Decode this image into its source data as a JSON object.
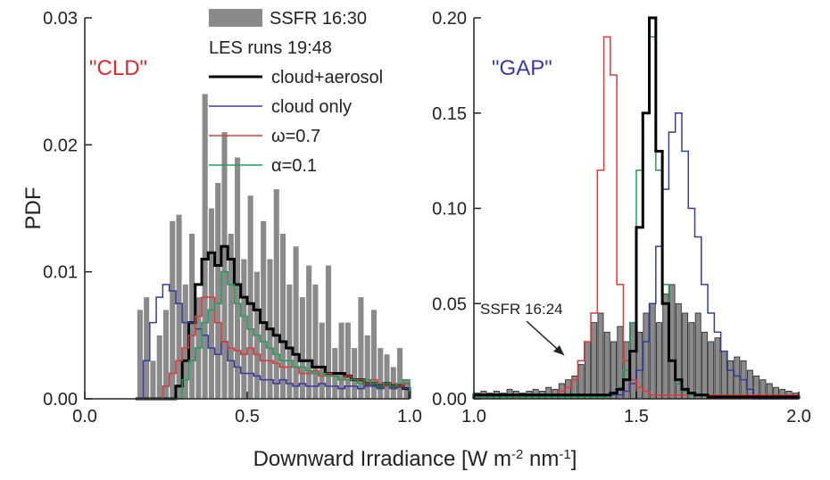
{
  "xlabel_parts": [
    {
      "text": "Downward Irradiance [W m"
    },
    {
      "text": "-2",
      "sup": true
    },
    {
      "text": " nm"
    },
    {
      "text": "-1",
      "sup": true
    },
    {
      "text": "]"
    }
  ],
  "chart_data": [
    {
      "type": "histogram",
      "ylabel": "PDF",
      "annotation": {
        "text": "\"CLD\"",
        "color": "#e02828"
      },
      "legend": "upper right",
      "legend_heading": "LES runs 19:48",
      "xlim": [
        0,
        1
      ],
      "ylim": [
        0,
        0.03
      ],
      "xticks": [
        {
          "value": 0,
          "label": "0.0"
        },
        {
          "value": 0.5,
          "label": "0.5"
        },
        {
          "value": 1,
          "label": "1.0"
        }
      ],
      "yticks": [
        {
          "value": 0,
          "label": "0.00"
        },
        {
          "value": 0.01,
          "label": "0.01"
        },
        {
          "value": 0.02,
          "label": "0.02"
        },
        {
          "value": 0.03,
          "label": "0.03"
        }
      ],
      "bins": [
        0.16,
        0.18,
        0.2,
        0.22,
        0.24,
        0.26,
        0.28,
        0.3,
        0.32,
        0.34,
        0.36,
        0.38,
        0.4,
        0.42,
        0.44,
        0.46,
        0.48,
        0.5,
        0.52,
        0.54,
        0.56,
        0.58,
        0.6,
        0.62,
        0.64,
        0.66,
        0.68,
        0.7,
        0.72,
        0.74,
        0.76,
        0.78,
        0.8,
        0.82,
        0.84,
        0.86,
        0.88,
        0.9,
        0.92,
        0.94,
        0.96,
        0.98,
        1.0
      ],
      "series": [
        {
          "name": "SSFR 16:30",
          "style": "bar",
          "color": "#8a8a8a",
          "values": [
            0.007,
            0.008,
            0.003,
            0.005,
            0.007,
            0.014,
            0.0145,
            0.009,
            0.013,
            0.008,
            0.024,
            0.015,
            0.017,
            0.021,
            0.013,
            0.019,
            0.011,
            0.016,
            0.01,
            0.014,
            0.011,
            0.0165,
            0.013,
            0.009,
            0.012,
            0.008,
            0.0105,
            0.009,
            0.006,
            0.0105,
            0.004,
            0.006,
            0.006,
            0.004,
            0.008,
            0.005,
            0.007,
            0.004,
            0.0035,
            0.0025,
            0.004,
            0.0015
          ]
        },
        {
          "name": "cloud+aerosol",
          "style": "step",
          "linewidth": 3,
          "color": "#000000",
          "values": [
            0,
            0,
            0,
            0,
            0,
            0,
            0.001,
            0.003,
            0.006,
            0.009,
            0.011,
            0.0115,
            0.0105,
            0.012,
            0.011,
            0.009,
            0.008,
            0.0075,
            0.007,
            0.006,
            0.0055,
            0.005,
            0.0045,
            0.004,
            0.0035,
            0.003,
            0.003,
            0.0025,
            0.0025,
            0.002,
            0.002,
            0.002,
            0.0018,
            0.0015,
            0.0015,
            0.0012,
            0.0012,
            0.001,
            0.0012,
            0.001,
            0.001,
            0.0008
          ]
        },
        {
          "name": "cloud only",
          "style": "step",
          "linewidth": 1.5,
          "color": "#3a3aa0",
          "values": [
            0,
            0.003,
            0.006,
            0.008,
            0.009,
            0.0085,
            0.0075,
            0.006,
            0.006,
            0.0055,
            0.005,
            0.004,
            0.0035,
            0.0045,
            0.003,
            0.0025,
            0.002,
            0.002,
            0.0018,
            0.0015,
            0.0015,
            0.0012,
            0.0015,
            0.0012,
            0.001,
            0.0012,
            0.001,
            0.001,
            0.0012,
            0.001,
            0.001,
            0.0008,
            0.001,
            0.001,
            0.0008,
            0.001,
            0.001,
            0.0008,
            0.001,
            0.0008,
            0.001,
            0.0008
          ]
        },
        {
          "name": "ω=0.7",
          "style": "step",
          "linewidth": 1.5,
          "color": "#e03a3a",
          "values": [
            0,
            0,
            0,
            0,
            0.001,
            0.002,
            0.003,
            0.004,
            0.005,
            0.0065,
            0.008,
            0.008,
            0.006,
            0.0045,
            0.004,
            0.0038,
            0.0035,
            0.004,
            0.0035,
            0.003,
            0.003,
            0.0028,
            0.0025,
            0.0025,
            0.0025,
            0.002,
            0.002,
            0.0022,
            0.0018,
            0.002,
            0.0018,
            0.0015,
            0.0018,
            0.0015,
            0.0015,
            0.0012,
            0.0015,
            0.0012,
            0.001,
            0.0012,
            0.001,
            0.0012
          ]
        },
        {
          "name": "α=0.1",
          "style": "step",
          "linewidth": 1.5,
          "color": "#1fa05a",
          "values": [
            0,
            0,
            0,
            0,
            0,
            0,
            0,
            0.0015,
            0.003,
            0.004,
            0.006,
            0.007,
            0.0075,
            0.01,
            0.009,
            0.0075,
            0.0065,
            0.0055,
            0.005,
            0.0045,
            0.004,
            0.0035,
            0.003,
            0.003,
            0.0025,
            0.0025,
            0.0022,
            0.002,
            0.002,
            0.0018,
            0.0018,
            0.0015,
            0.0015,
            0.0015,
            0.0012,
            0.0015,
            0.0012,
            0.001,
            0.0012,
            0.001,
            0.0012,
            0.0015
          ]
        }
      ]
    },
    {
      "type": "histogram",
      "annotation": {
        "text": "\"GAP\"",
        "color": "#3a3aa0"
      },
      "arrow_label": "SSFR 16:24",
      "xlim": [
        1,
        2
      ],
      "ylim": [
        0,
        0.2
      ],
      "xticks": [
        {
          "value": 1,
          "label": "1.0"
        },
        {
          "value": 1.5,
          "label": "1.5"
        },
        {
          "value": 2,
          "label": "2.0"
        }
      ],
      "yticks": [
        {
          "value": 0,
          "label": "0.00"
        },
        {
          "value": 0.05,
          "label": "0.05"
        },
        {
          "value": 0.1,
          "label": "0.10"
        },
        {
          "value": 0.15,
          "label": "0.15"
        },
        {
          "value": 0.2,
          "label": "0.20"
        }
      ],
      "bins": [
        1.0,
        1.02,
        1.04,
        1.06,
        1.08,
        1.1,
        1.12,
        1.14,
        1.16,
        1.18,
        1.2,
        1.22,
        1.24,
        1.26,
        1.28,
        1.3,
        1.32,
        1.34,
        1.36,
        1.38,
        1.4,
        1.42,
        1.44,
        1.46,
        1.48,
        1.5,
        1.52,
        1.54,
        1.56,
        1.58,
        1.6,
        1.62,
        1.64,
        1.66,
        1.68,
        1.7,
        1.72,
        1.74,
        1.76,
        1.78,
        1.8,
        1.82,
        1.84,
        1.86,
        1.88,
        1.9,
        1.92,
        1.94,
        1.96,
        1.98,
        2.0
      ],
      "series": [
        {
          "style": "bar",
          "color": "#8a8a8a",
          "values": [
            0.003,
            0.004,
            0.003,
            0.004,
            0.003,
            0.005,
            0.004,
            0.003,
            0.004,
            0.005,
            0.004,
            0.006,
            0.005,
            0.008,
            0.01,
            0.012,
            0.018,
            0.03,
            0.04,
            0.045,
            0.035,
            0.03,
            0.038,
            0.03,
            0.04,
            0.035,
            0.045,
            0.05,
            0.04,
            0.055,
            0.06,
            0.05,
            0.045,
            0.04,
            0.045,
            0.035,
            0.03,
            0.032,
            0.025,
            0.02,
            0.022,
            0.02,
            0.015,
            0.012,
            0.01,
            0.008,
            0.006,
            0.005,
            0.004,
            0.003
          ]
        },
        {
          "style": "step",
          "linewidth": 1.5,
          "color": "#3a3aa0",
          "values": [
            0.002,
            0.002,
            0.002,
            0.002,
            0.002,
            0.002,
            0.002,
            0.002,
            0.002,
            0.002,
            0.002,
            0.002,
            0.002,
            0.002,
            0.002,
            0.002,
            0.002,
            0.002,
            0.002,
            0.002,
            0.002,
            0.002,
            0.002,
            0.004,
            0.008,
            0.015,
            0.03,
            0.05,
            0.08,
            0.11,
            0.14,
            0.15,
            0.13,
            0.1,
            0.085,
            0.06,
            0.045,
            0.035,
            0.025,
            0.015,
            0.012,
            0.01,
            0.005,
            0,
            0,
            0,
            0,
            0,
            0,
            0
          ]
        },
        {
          "style": "step",
          "linewidth": 1.5,
          "color": "#e03a3a",
          "values": [
            0.002,
            0.002,
            0.002,
            0.002,
            0.002,
            0.002,
            0.002,
            0.002,
            0.002,
            0.002,
            0.002,
            0.002,
            0.002,
            0.004,
            0.006,
            0.01,
            0.02,
            0.03,
            0.045,
            0.12,
            0.19,
            0.17,
            0.06,
            0.02,
            0.01,
            0.006,
            0.004,
            0.002,
            0.002,
            0.002,
            0.002,
            0.002,
            0.002,
            0.002,
            0.002,
            0.002,
            0.002,
            0.002,
            0.002,
            0.002,
            0.002,
            0.002,
            0.002,
            0.002,
            0.002,
            0.002,
            0.002,
            0.002,
            0.002,
            0.002
          ]
        },
        {
          "style": "step",
          "linewidth": 1.5,
          "color": "#1fa05a",
          "values": [
            0.001,
            0.001,
            0.001,
            0.001,
            0.001,
            0.001,
            0.001,
            0.001,
            0.001,
            0.001,
            0.001,
            0.001,
            0.001,
            0.001,
            0.001,
            0.001,
            0.001,
            0.001,
            0.001,
            0.001,
            0.001,
            0.003,
            0.006,
            0.015,
            0.04,
            0.12,
            0.15,
            0.19,
            0.12,
            0.06,
            0.02,
            0.008,
            0.004,
            0.002,
            0.002,
            0.002,
            0.001,
            0.001,
            0.001,
            0.001,
            0.001,
            0.001,
            0.001,
            0.001,
            0.001,
            0.001,
            0.001,
            0.001,
            0.001,
            0.001
          ]
        },
        {
          "style": "step",
          "linewidth": 3,
          "color": "#000000",
          "values": [
            0.002,
            0.002,
            0.002,
            0.002,
            0.002,
            0.002,
            0.002,
            0.002,
            0.002,
            0.002,
            0.002,
            0.002,
            0.002,
            0.002,
            0.002,
            0.002,
            0.002,
            0.002,
            0.002,
            0.002,
            0.002,
            0.003,
            0.005,
            0.01,
            0.025,
            0.09,
            0.15,
            0.2,
            0.13,
            0.05,
            0.02,
            0.01,
            0.005,
            0.003,
            0.002,
            0.002,
            0.001,
            0.001,
            0.001,
            0.001,
            0.001,
            0.001,
            0.001,
            0.001,
            0.001,
            0.001,
            0.001,
            0.001,
            0.001,
            0.001
          ]
        }
      ]
    }
  ]
}
